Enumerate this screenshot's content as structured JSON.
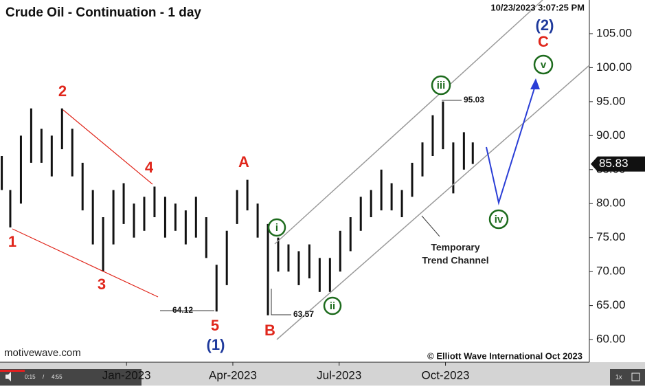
{
  "chart_data": {
    "type": "ohlc",
    "title": "Crude Oil - Continuation - 1 day",
    "timestamp": "10/23/2023 3:07:25 PM",
    "source": "motivewave.com",
    "copyright": "© Elliott Wave International Oct 2023",
    "x": [
      -3.52,
      -3.28,
      -2.98,
      -2.69,
      -2.4,
      -2.11,
      -1.82,
      -1.53,
      -1.24,
      -0.95,
      -0.66,
      -0.37,
      -0.08,
      0.21,
      0.5,
      0.79,
      1.09,
      1.38,
      1.67,
      1.96,
      2.25,
      2.54,
      2.83,
      3.12,
      3.41,
      3.7,
      3.99,
      4.28,
      4.57,
      4.86,
      5.16,
      5.45,
      5.74,
      6.03,
      6.32,
      6.61,
      6.9,
      7.19,
      7.48,
      7.77,
      8.06,
      8.35,
      8.64,
      8.93,
      9.22,
      9.52,
      9.77
    ],
    "high": [
      87,
      82,
      90,
      94,
      91,
      90,
      94,
      91,
      86,
      82,
      78,
      82,
      83,
      80,
      81,
      82.5,
      81,
      80,
      79,
      81,
      78,
      71,
      76,
      82,
      83.5,
      80,
      77,
      75,
      74,
      73,
      74,
      72,
      72,
      76,
      78,
      81,
      82,
      85,
      83,
      82,
      86,
      89,
      93,
      95.03,
      89,
      90.5,
      89
    ],
    "low": [
      82,
      76.5,
      80,
      86,
      86,
      84,
      88,
      84,
      79,
      74,
      70,
      74,
      77,
      75,
      76,
      78,
      75,
      76,
      74,
      75,
      72,
      64.12,
      68,
      77,
      79,
      75,
      63.57,
      70,
      70,
      68,
      69,
      67,
      67,
      70,
      73,
      76,
      78,
      79,
      79,
      78,
      81,
      84,
      87,
      88,
      81.5,
      85,
      85.83
    ],
    "color": "#111111",
    "last_price": 85.83,
    "xlim": [
      -3.57,
      13.06
    ],
    "xticks": [
      {
        "value": 0,
        "label": "Jan-2023"
      },
      {
        "value": 3,
        "label": "Apr-2023"
      },
      {
        "value": 6,
        "label": "Jul-2023"
      },
      {
        "value": 9,
        "label": "Oct-2023"
      }
    ],
    "ylim": [
      56.67,
      109.95
    ],
    "yticks": [
      {
        "value": 60,
        "label": "60.00"
      },
      {
        "value": 65,
        "label": "65.00"
      },
      {
        "value": 70,
        "label": "70.00"
      },
      {
        "value": 75,
        "label": "75.00"
      },
      {
        "value": 80,
        "label": "80.00"
      },
      {
        "value": 85,
        "label": "85.00"
      },
      {
        "value": 90,
        "label": "90.00"
      },
      {
        "value": 95,
        "label": "95.00"
      },
      {
        "value": 100,
        "label": "100.00"
      },
      {
        "value": 105,
        "label": "105.00"
      }
    ],
    "grid": false,
    "wave_labels": [
      "1",
      "2",
      "3",
      "4",
      "5",
      "(1)",
      "A",
      "B",
      "C",
      "(2)",
      "i",
      "ii",
      "iii",
      "iv",
      "v"
    ],
    "level_labels": [
      "64.12",
      "63.57",
      "95.03"
    ],
    "annotation": [
      "Temporary",
      "Trend Channel"
    ]
  },
  "player": {
    "current": "0:15",
    "separator": "/",
    "total": "4:55",
    "speed": "1x"
  }
}
